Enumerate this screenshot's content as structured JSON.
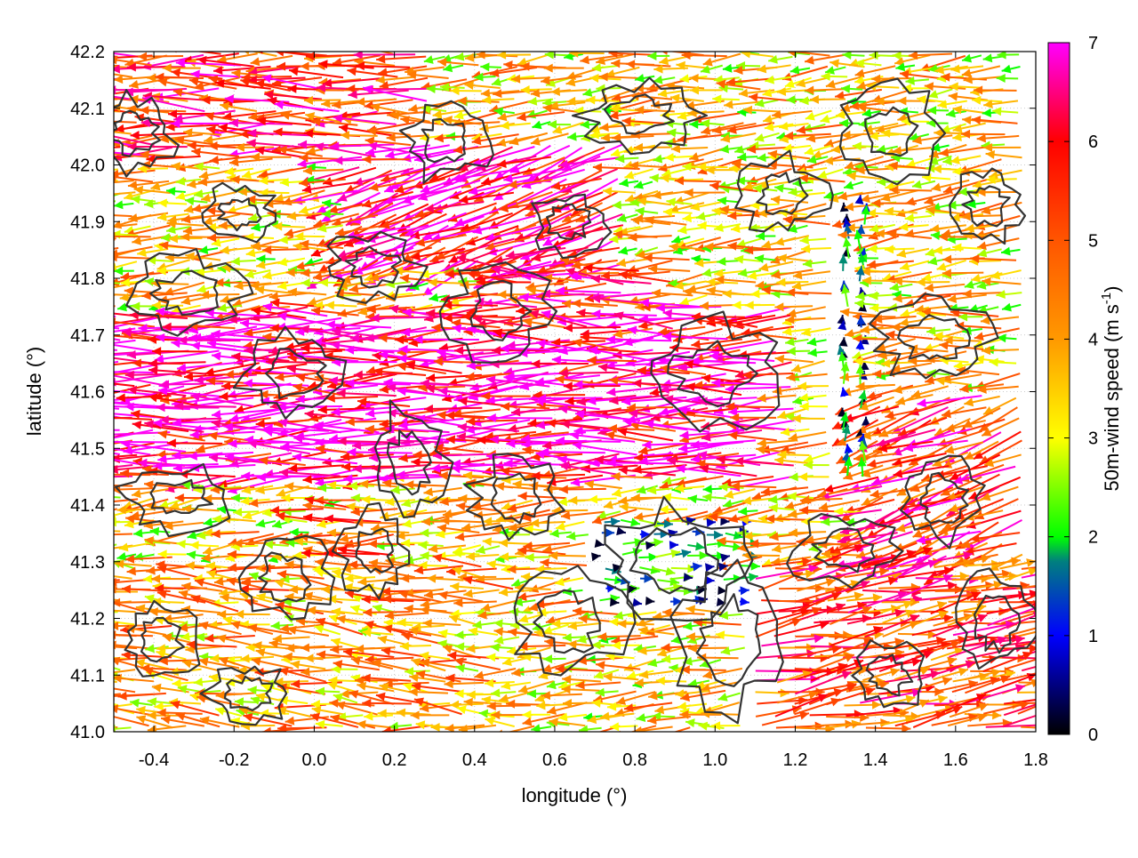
{
  "chart_data": {
    "type": "vector-field",
    "title": "",
    "xlabel": "longitude (°)",
    "ylabel": "latitude (°)",
    "xlim": [
      -0.5,
      1.8
    ],
    "ylim": [
      41.0,
      42.2
    ],
    "xticks": [
      -0.4,
      -0.2,
      0.0,
      0.2,
      0.4,
      0.6,
      0.8,
      1.0,
      1.2,
      1.4,
      1.6,
      1.8
    ],
    "xtick_labels": [
      "-0.4",
      "-0.2",
      "0.0",
      "0.2",
      "0.4",
      "0.6",
      "0.8",
      "1.0",
      "1.2",
      "1.4",
      "1.6",
      "1.8"
    ],
    "yticks": [
      41.0,
      41.1,
      41.2,
      41.3,
      41.4,
      41.5,
      41.6,
      41.7,
      41.8,
      41.9,
      42.0,
      42.1,
      42.2
    ],
    "ytick_labels": [
      "41.0",
      "41.1",
      "41.2",
      "41.3",
      "41.4",
      "41.5",
      "41.6",
      "41.7",
      "41.8",
      "41.9",
      "42.0",
      "42.1",
      "42.2"
    ],
    "grid": true,
    "colorbar": {
      "label_main": "50m-wind speed (m s",
      "label_sup": "-1",
      "label_close": ")",
      "range": [
        0,
        7
      ],
      "ticks": [
        0,
        1,
        2,
        3,
        4,
        5,
        6,
        7
      ],
      "tick_labels": [
        "0",
        "1",
        "2",
        "3",
        "4",
        "5",
        "6",
        "7"
      ],
      "colormap": [
        {
          "v": 0.0,
          "color": "#000000"
        },
        {
          "v": 1.0,
          "color": "#0000ff"
        },
        {
          "v": 1.75,
          "color": "#007f7f"
        },
        {
          "v": 2.0,
          "color": "#00ff00"
        },
        {
          "v": 3.0,
          "color": "#ffff00"
        },
        {
          "v": 4.0,
          "color": "#ff9900"
        },
        {
          "v": 5.0,
          "color": "#ff5500"
        },
        {
          "v": 6.0,
          "color": "#ff0000"
        },
        {
          "v": 7.0,
          "color": "#ff00ff"
        }
      ]
    },
    "contour_color": "#333333",
    "wind_regions": [
      {
        "lon": [
          -0.5,
          1.2
        ],
        "lat": [
          41.45,
          41.75
        ],
        "speed": 6.5,
        "dir_deg": 182
      },
      {
        "lon": [
          0.45,
          0.9
        ],
        "lat": [
          41.7,
          41.82
        ],
        "speed": 5.8,
        "dir_deg": 178
      },
      {
        "lon": [
          0.1,
          0.8
        ],
        "lat": [
          41.82,
          42.05
        ],
        "speed": 6.3,
        "dir_deg": 200
      },
      {
        "lon": [
          -0.5,
          0.3
        ],
        "lat": [
          42.0,
          42.2
        ],
        "speed": 5.5,
        "dir_deg": 180
      },
      {
        "lon": [
          1.3,
          1.4
        ],
        "lat": [
          41.45,
          41.95
        ],
        "speed": 0.9,
        "dir_deg": 90
      },
      {
        "lon": [
          0.7,
          1.1
        ],
        "lat": [
          41.22,
          41.38
        ],
        "speed": 1.2,
        "dir_deg": 0
      },
      {
        "lon": [
          1.1,
          1.8
        ],
        "lat": [
          41.0,
          41.3
        ],
        "speed": 5.2,
        "dir_deg": 10
      },
      {
        "lon": [
          1.4,
          1.8
        ],
        "lat": [
          41.3,
          41.6
        ],
        "speed": 5.5,
        "dir_deg": 200
      },
      {
        "lon": [
          -0.5,
          0.5
        ],
        "lat": [
          41.0,
          41.3
        ],
        "speed": 4.0,
        "dir_deg": 175
      },
      {
        "lon": [
          0.0,
          0.2
        ],
        "lat": [
          41.28,
          41.4
        ],
        "speed": 4.5,
        "dir_deg": 180
      }
    ]
  }
}
